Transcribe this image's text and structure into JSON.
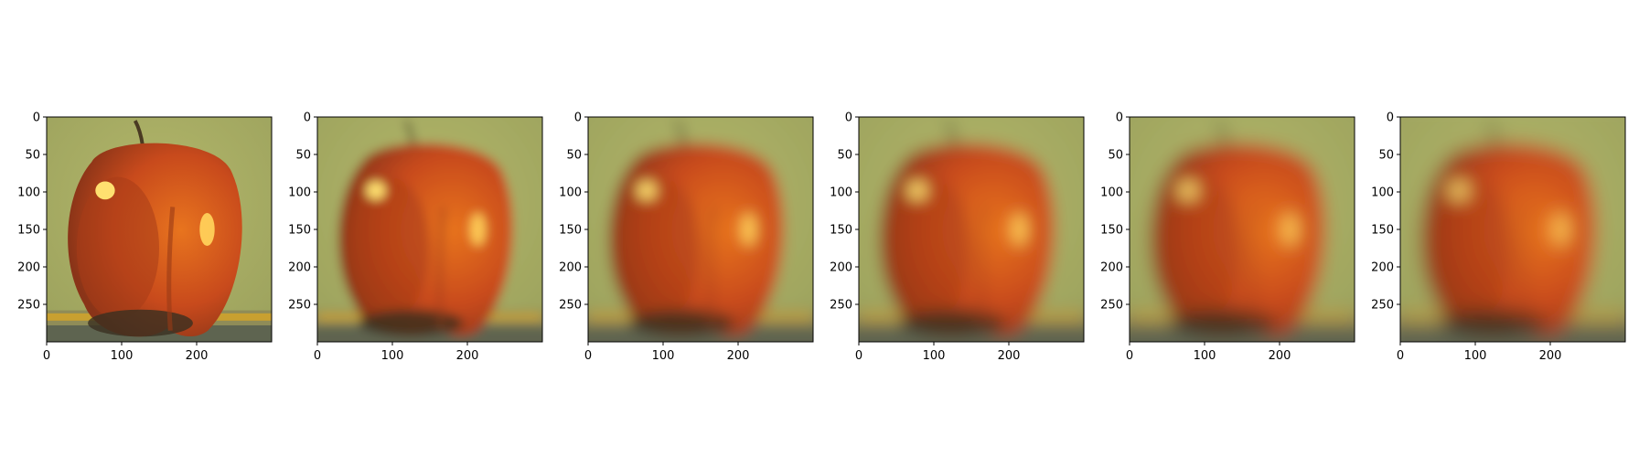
{
  "figure": {
    "background": "#ffffff",
    "panels": [
      {
        "image": "apple-original",
        "blur": 0
      },
      {
        "image": "apple-blurred-level-1",
        "blur": 5.5
      },
      {
        "image": "apple-blurred-level-2",
        "blur": 7.5
      },
      {
        "image": "apple-blurred-level-3",
        "blur": 8.5
      },
      {
        "image": "apple-blurred-level-4",
        "blur": 9.5
      },
      {
        "image": "apple-blurred-level-5",
        "blur": 10.5
      }
    ],
    "x_ticks": [
      "0",
      "100",
      "200"
    ],
    "y_ticks": [
      "0",
      "50",
      "100",
      "150",
      "200",
      "250"
    ],
    "x_tick_values": [
      0,
      100,
      200
    ],
    "y_tick_values": [
      0,
      50,
      100,
      150,
      200,
      250
    ],
    "image_extent": 300
  },
  "colors": {
    "background_green": "#9aa05c",
    "apple_red": "#c84a1c",
    "apple_orange": "#e8741e",
    "highlight": "#ffe070",
    "shadow": "#3a3020",
    "table_edge": "#c8a030"
  }
}
